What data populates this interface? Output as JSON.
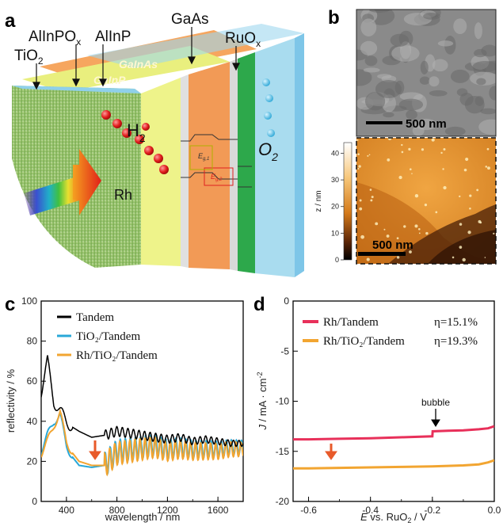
{
  "panels": {
    "a": {
      "letter": "a",
      "layers": [
        "AlInPO",
        "AlInP",
        "TiO",
        "GaAs",
        "RuO"
      ],
      "sub_x": "x",
      "sub_2": "2",
      "junctions": [
        "GaInAs",
        "GaInP"
      ],
      "h2": "H",
      "o2": "O",
      "rh": "Rh",
      "e_labels": [
        "E",
        "E"
      ],
      "e_subs": [
        "g,1",
        "g,2"
      ]
    },
    "b": {
      "letter": "b",
      "sem_scale": "500 nm",
      "afm_scale": "500 nm",
      "colorbar_label": "z / nm",
      "colorbar_ticks": [
        "40",
        "30",
        "20",
        "10",
        "0"
      ],
      "colors": {
        "afm_light": "#f5c477",
        "afm_mid": "#d88420",
        "afm_dark": "#3a1a05"
      }
    },
    "c": {
      "letter": "c"
    },
    "d": {
      "letter": "d",
      "annotation": "bubble"
    }
  },
  "chart_data": [
    {
      "type": "line",
      "panel": "c",
      "xlabel": "wavelength / nm",
      "ylabel": "reflectivity / %",
      "xlim": [
        200,
        1800
      ],
      "ylim": [
        0,
        100
      ],
      "xticks": [
        "400",
        "800",
        "1200",
        "1600"
      ],
      "yticks": [
        "0",
        "20",
        "40",
        "60",
        "80",
        "100"
      ],
      "legend": "top-left",
      "series": [
        {
          "name": "Tandem",
          "color": "#000000",
          "x": [
            200,
            250,
            300,
            350,
            400,
            450,
            500,
            600,
            700,
            800,
            900,
            1000,
            1100,
            1200,
            1300,
            1400,
            1500,
            1600,
            1700,
            1800
          ],
          "y": [
            55,
            70,
            50,
            45,
            40,
            37,
            35,
            32,
            33,
            35,
            34,
            33,
            32,
            31,
            32,
            30,
            31,
            30,
            29,
            29
          ]
        },
        {
          "name": "TiO₂/Tandem",
          "color": "#29a8d8",
          "x": [
            200,
            250,
            300,
            350,
            400,
            450,
            500,
            600,
            700,
            800,
            900,
            1000,
            1100,
            1200,
            1300,
            1400,
            1500,
            1600,
            1700,
            1800
          ],
          "y": [
            25,
            33,
            40,
            43,
            28,
            22,
            18,
            17,
            18,
            25,
            26,
            27,
            28,
            26,
            27,
            26,
            26,
            26,
            27,
            27
          ]
        },
        {
          "name": "Rh/TiO₂/Tandem",
          "color": "#f2a531",
          "x": [
            200,
            250,
            300,
            350,
            400,
            450,
            500,
            600,
            700,
            800,
            900,
            1000,
            1100,
            1200,
            1300,
            1400,
            1500,
            1600,
            1700,
            1800
          ],
          "y": [
            24,
            30,
            38,
            44,
            30,
            24,
            20,
            18,
            18,
            24,
            25,
            26,
            27,
            25,
            26,
            25,
            25,
            25,
            26,
            26
          ]
        }
      ]
    },
    {
      "type": "line",
      "panel": "d",
      "xlabel_main": "E",
      "xlabel_rest": " vs. RuO",
      "xlabel_sub": "2",
      "xlabel_end": " / V",
      "ylabel_main": "J",
      "ylabel_rest": " / mA · cm",
      "ylabel_sup": "-2",
      "xlim": [
        -0.65,
        0.0
      ],
      "ylim": [
        -20,
        0
      ],
      "xticks": [
        "-0.6",
        "-0.4",
        "-0.2",
        "0.0"
      ],
      "yticks": [
        "0",
        "-5",
        "-10",
        "-15",
        "-20"
      ],
      "legend": "top",
      "series": [
        {
          "name": "Rh/Tandem",
          "efficiency": "η=15.1%",
          "color": "#e8305a",
          "x": [
            -0.65,
            -0.6,
            -0.5,
            -0.4,
            -0.3,
            -0.2,
            -0.199,
            -0.15,
            -0.1,
            -0.05,
            -0.02,
            0.0
          ],
          "y": [
            -13.8,
            -13.8,
            -13.75,
            -13.7,
            -13.6,
            -13.5,
            -13.0,
            -12.95,
            -12.9,
            -12.8,
            -12.7,
            -12.5
          ]
        },
        {
          "name": "Rh/TiO₂/Tandem",
          "efficiency": "η=19.3%",
          "color": "#f2a531",
          "x": [
            -0.65,
            -0.6,
            -0.5,
            -0.4,
            -0.3,
            -0.2,
            -0.15,
            -0.1,
            -0.05,
            -0.02,
            0.0
          ],
          "y": [
            -16.7,
            -16.7,
            -16.65,
            -16.6,
            -16.55,
            -16.5,
            -16.45,
            -16.4,
            -16.3,
            -16.1,
            -15.9
          ]
        }
      ]
    }
  ]
}
